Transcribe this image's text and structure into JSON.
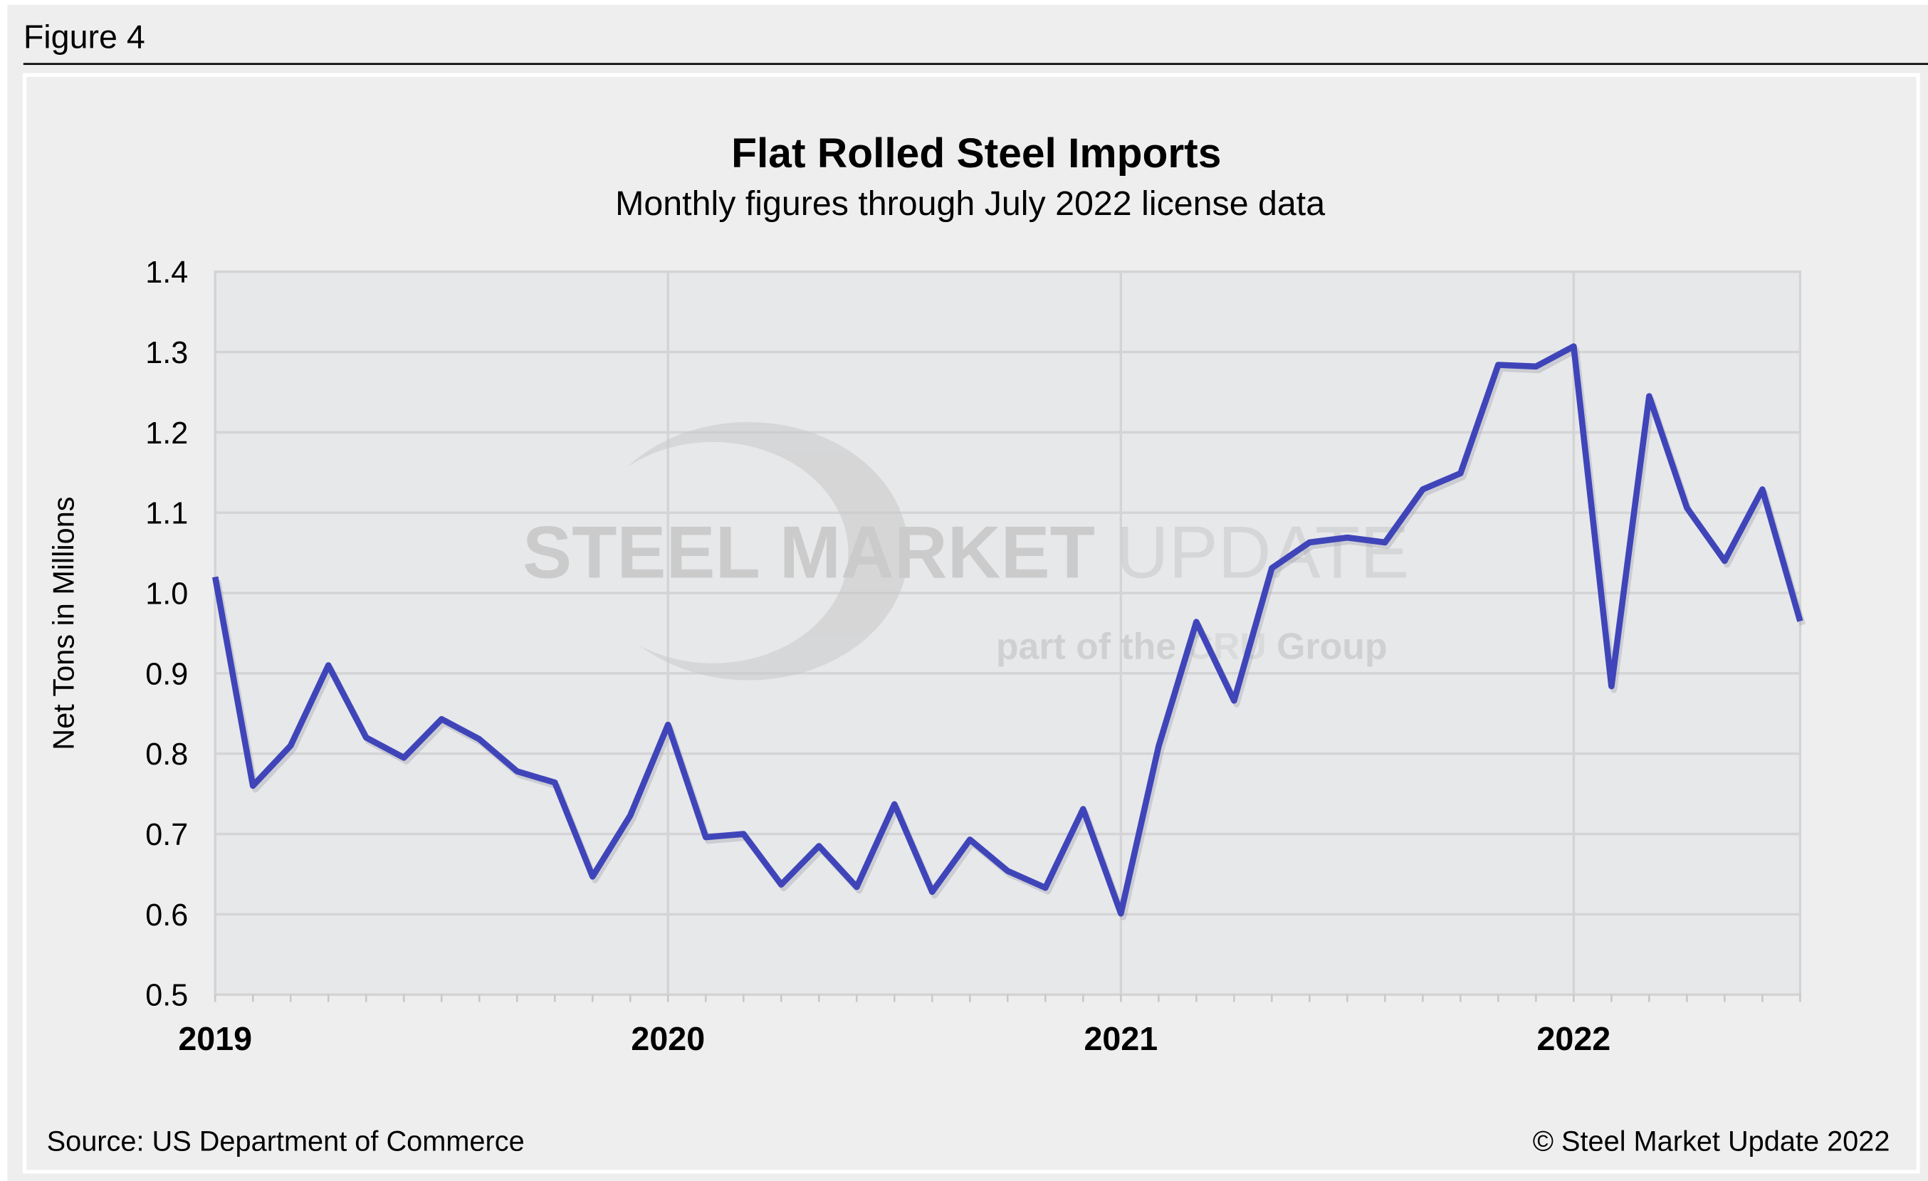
{
  "figure_label": "Figure 4",
  "source": "Source: US Department of Commerce",
  "copyright": "© Steel Market Update 2022",
  "watermark": {
    "line1a": "STEEL MARKET",
    "line1b": "UPDATE",
    "line2a": "part of the",
    "line2b": "CRU",
    "line2c": "Group"
  },
  "colors": {
    "line": "#3f45b9",
    "plot_bg": "#e7e8ea",
    "panel_bg": "#eeeeee",
    "grid": "#d4d4d6"
  },
  "chart_data": {
    "type": "line",
    "title": "Flat Rolled Steel Imports",
    "subtitle": "Monthly figures through July 2022 license data",
    "xlabel": "",
    "ylabel": "Net Tons in Millions",
    "ylim": [
      0.5,
      1.4
    ],
    "yticks": [
      "0.5",
      "0.6",
      "0.7",
      "0.8",
      "0.9",
      "1.0",
      "1.1",
      "1.2",
      "1.3",
      "1.4"
    ],
    "xtick_labels": [
      {
        "label": "2019",
        "month_index": 0
      },
      {
        "label": "2020",
        "month_index": 12
      },
      {
        "label": "2021",
        "month_index": 24
      },
      {
        "label": "2022",
        "month_index": 36
      }
    ],
    "grid": true,
    "series": [
      {
        "name": "Flat Rolled Steel Imports",
        "x_start": "2019-01",
        "values": [
          1.02,
          0.76,
          0.81,
          0.91,
          0.82,
          0.795,
          0.843,
          0.818,
          0.778,
          0.764,
          0.647,
          0.723,
          0.836,
          0.696,
          0.7,
          0.637,
          0.685,
          0.634,
          0.737,
          0.628,
          0.693,
          0.654,
          0.633,
          0.731,
          0.601,
          0.809,
          0.964,
          0.866,
          1.031,
          1.063,
          1.069,
          1.063,
          1.129,
          1.149,
          1.284,
          1.282,
          1.307,
          0.884,
          1.245,
          1.106,
          1.04,
          1.129,
          0.965
        ]
      }
    ]
  }
}
